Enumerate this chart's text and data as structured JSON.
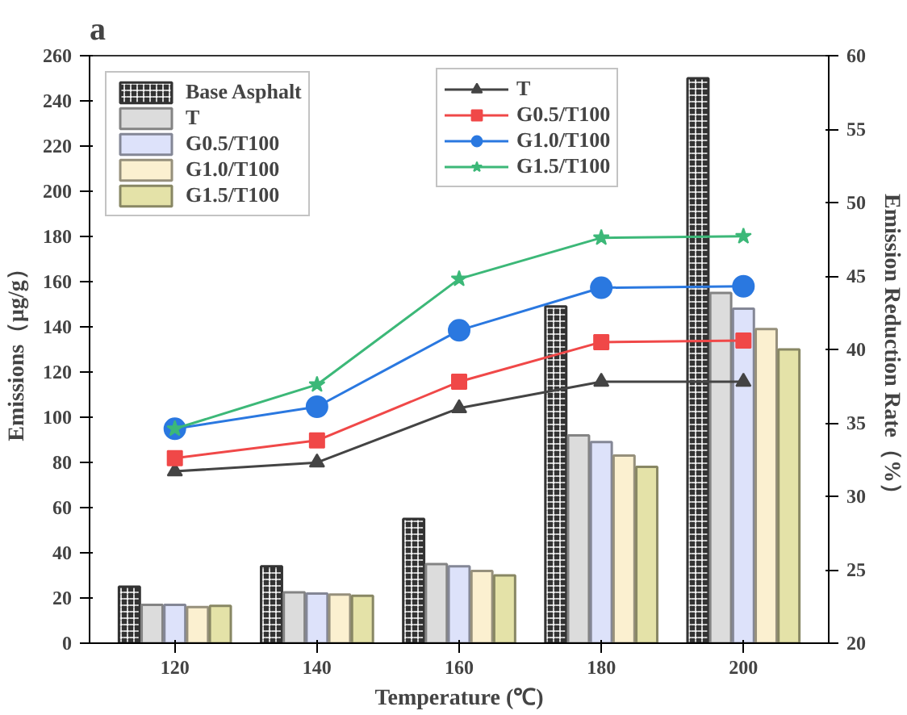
{
  "chart_data": {
    "type": "bar",
    "title": "a",
    "xlabel": "Temperature (℃)",
    "ylabel": "Emissions（μg/g）",
    "y2label": "Emission Reduction Rate（%）",
    "categories": [
      "120",
      "140",
      "160",
      "180",
      "200"
    ],
    "ylim": [
      0,
      260
    ],
    "yticks": [
      0,
      20,
      40,
      60,
      80,
      100,
      120,
      140,
      160,
      180,
      200,
      220,
      240,
      260
    ],
    "y2lim": [
      20,
      60
    ],
    "y2ticks": [
      20,
      25,
      30,
      35,
      40,
      45,
      50,
      55,
      60
    ],
    "grid": false,
    "legend": "top left",
    "series": [
      {
        "name": "Base Asphalt",
        "color": "#333333",
        "values": [
          25,
          34,
          55,
          149,
          250
        ]
      },
      {
        "name": "T",
        "color": "#dcdcdc",
        "values": [
          17,
          22.5,
          35,
          92,
          155
        ]
      },
      {
        "name": "G0.5/T100",
        "color": "#dde2fa",
        "values": [
          17,
          22,
          34,
          89,
          148
        ]
      },
      {
        "name": "G1.0/T100",
        "color": "#fbf0d0",
        "values": [
          16,
          21.5,
          32,
          83,
          139
        ]
      },
      {
        "name": "G1.5/T100",
        "color": "#e4e2a8",
        "values": [
          16.5,
          21,
          30,
          78,
          130
        ]
      },
      {
        "name": "T",
        "type": "line",
        "axis": "y2",
        "marker": "triangle",
        "color": "#444444",
        "values": [
          31.7,
          32.3,
          36.0,
          37.8,
          37.8
        ]
      },
      {
        "name": "G0.5/T100",
        "type": "line",
        "axis": "y2",
        "marker": "square",
        "color": "#f04848",
        "values": [
          32.6,
          33.8,
          37.8,
          40.5,
          40.6
        ]
      },
      {
        "name": "G1.0/T100",
        "type": "line",
        "axis": "y2",
        "marker": "circle",
        "color": "#2a78e0",
        "values": [
          34.6,
          36.1,
          41.3,
          44.2,
          44.3
        ]
      },
      {
        "name": "G1.5/T100",
        "type": "line",
        "axis": "y2",
        "marker": "star",
        "color": "#3cb878",
        "values": [
          34.6,
          37.6,
          44.8,
          47.6,
          47.7
        ]
      }
    ]
  }
}
